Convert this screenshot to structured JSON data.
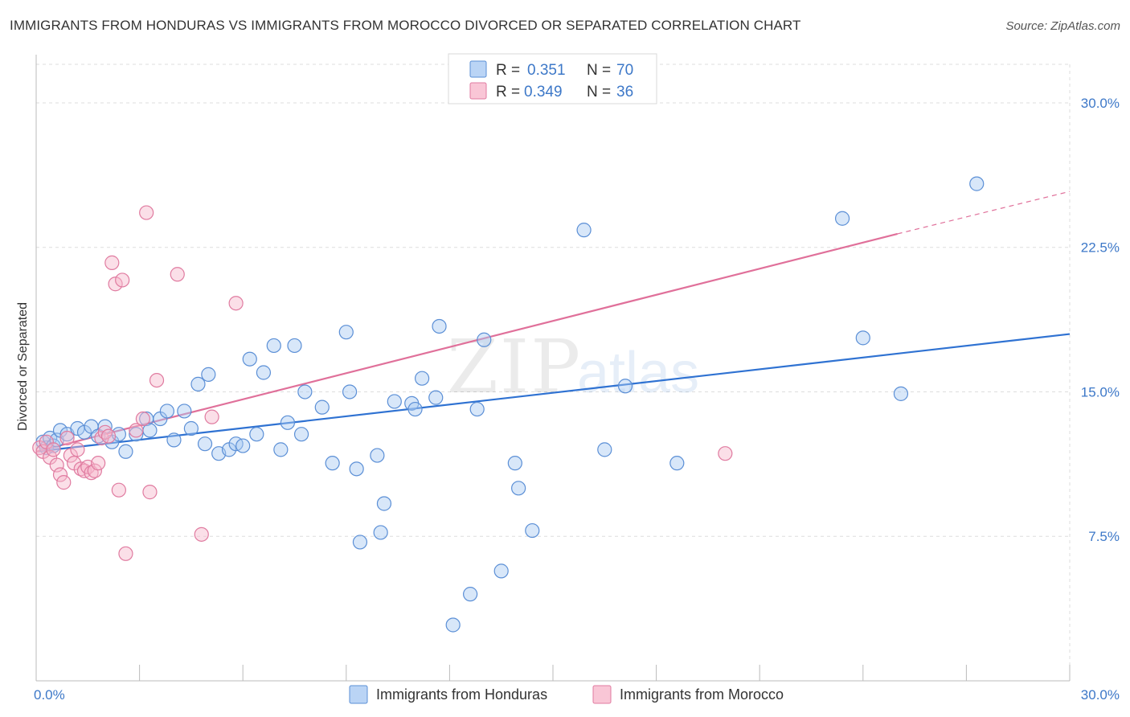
{
  "title": "IMMIGRANTS FROM HONDURAS VS IMMIGRANTS FROM MOROCCO DIVORCED OR SEPARATED CORRELATION CHART",
  "source": "Source: ZipAtlas.com",
  "watermark": {
    "zip": "ZIP",
    "atlas": "atlas"
  },
  "legend": {
    "r_label": "R =",
    "n_label": "N =",
    "series": [
      {
        "r": "0.351",
        "n": "70"
      },
      {
        "r": "0.349",
        "n": "36"
      }
    ]
  },
  "colors": {
    "honduras_fill": "#a9c9f2",
    "honduras_stroke": "#5b8fd6",
    "honduras_line": "#2f72d2",
    "morocco_fill": "#f7b8cc",
    "morocco_stroke": "#e07ba0",
    "morocco_line": "#e0709a",
    "tick_label": "#3d78c8",
    "grid": "#dddddd"
  },
  "chart_data": {
    "type": "scatter",
    "title": "IMMIGRANTS FROM HONDURAS VS IMMIGRANTS FROM MOROCCO DIVORCED OR SEPARATED CORRELATION CHART",
    "xlabel": "",
    "ylabel": "Divorced or Separated",
    "xlim": [
      0,
      30
    ],
    "ylim": [
      0,
      32
    ],
    "x_tick_labels": [
      "0.0%",
      "30.0%"
    ],
    "y_ticks": [
      7.5,
      15.0,
      22.5,
      30.0
    ],
    "y_tick_labels": [
      "7.5%",
      "15.0%",
      "22.5%",
      "30.0%"
    ],
    "legend_position": "top-center",
    "series": [
      {
        "name": "Immigrants from Honduras",
        "r": 0.351,
        "n": 70,
        "trend": {
          "x0": 0,
          "y0": 11.9,
          "x1": 30,
          "y1": 18.0
        },
        "points": [
          [
            0.2,
            12.4
          ],
          [
            0.3,
            12.1
          ],
          [
            0.4,
            12.6
          ],
          [
            0.5,
            12.2
          ],
          [
            0.6,
            12.5
          ],
          [
            0.7,
            13.0
          ],
          [
            0.9,
            12.8
          ],
          [
            1.2,
            13.1
          ],
          [
            1.4,
            12.9
          ],
          [
            1.6,
            13.2
          ],
          [
            1.8,
            12.7
          ],
          [
            2.0,
            13.2
          ],
          [
            2.2,
            12.4
          ],
          [
            2.4,
            12.8
          ],
          [
            2.6,
            11.9
          ],
          [
            2.9,
            12.8
          ],
          [
            3.2,
            13.6
          ],
          [
            3.3,
            13.0
          ],
          [
            3.6,
            13.6
          ],
          [
            3.8,
            14.0
          ],
          [
            4.0,
            12.5
          ],
          [
            4.3,
            14.0
          ],
          [
            4.5,
            13.1
          ],
          [
            4.7,
            15.4
          ],
          [
            4.9,
            12.3
          ],
          [
            5.0,
            15.9
          ],
          [
            5.3,
            11.8
          ],
          [
            5.6,
            12.0
          ],
          [
            5.8,
            12.3
          ],
          [
            6.0,
            12.2
          ],
          [
            6.2,
            16.7
          ],
          [
            6.4,
            12.8
          ],
          [
            6.6,
            16.0
          ],
          [
            6.9,
            17.4
          ],
          [
            7.1,
            12.0
          ],
          [
            7.3,
            13.4
          ],
          [
            7.5,
            17.4
          ],
          [
            7.7,
            12.8
          ],
          [
            7.8,
            15.0
          ],
          [
            8.3,
            14.2
          ],
          [
            8.6,
            11.3
          ],
          [
            9.0,
            18.1
          ],
          [
            9.1,
            15.0
          ],
          [
            9.3,
            11.0
          ],
          [
            9.4,
            7.2
          ],
          [
            9.9,
            11.7
          ],
          [
            10.0,
            7.7
          ],
          [
            10.1,
            9.2
          ],
          [
            10.4,
            14.5
          ],
          [
            10.9,
            14.4
          ],
          [
            11.0,
            14.1
          ],
          [
            11.2,
            15.7
          ],
          [
            11.6,
            14.7
          ],
          [
            11.7,
            18.4
          ],
          [
            12.1,
            2.9
          ],
          [
            12.6,
            4.5
          ],
          [
            12.8,
            14.1
          ],
          [
            13.0,
            17.7
          ],
          [
            13.5,
            5.7
          ],
          [
            13.9,
            11.3
          ],
          [
            14.0,
            10.0
          ],
          [
            14.4,
            7.8
          ],
          [
            15.9,
            23.4
          ],
          [
            16.5,
            12.0
          ],
          [
            17.1,
            15.3
          ],
          [
            18.6,
            11.3
          ],
          [
            23.4,
            24.0
          ],
          [
            24.0,
            17.8
          ],
          [
            25.1,
            14.9
          ],
          [
            27.3,
            25.8
          ]
        ]
      },
      {
        "name": "Immigrants from Morocco",
        "r": 0.349,
        "n": 36,
        "trend": {
          "x0": 0,
          "y0": 11.9,
          "x1": 25.0,
          "y1": 23.2
        },
        "trend_extension": {
          "x0": 25.0,
          "y0": 23.2,
          "x1": 30,
          "y1": 25.4
        },
        "points": [
          [
            0.1,
            12.1
          ],
          [
            0.2,
            11.9
          ],
          [
            0.3,
            12.4
          ],
          [
            0.4,
            11.6
          ],
          [
            0.5,
            12.0
          ],
          [
            0.6,
            11.2
          ],
          [
            0.7,
            10.7
          ],
          [
            0.8,
            10.3
          ],
          [
            0.9,
            12.6
          ],
          [
            1.0,
            11.7
          ],
          [
            1.1,
            11.3
          ],
          [
            1.2,
            12.0
          ],
          [
            1.3,
            11.0
          ],
          [
            1.4,
            10.9
          ],
          [
            1.5,
            11.1
          ],
          [
            1.6,
            10.8
          ],
          [
            1.7,
            10.9
          ],
          [
            1.8,
            11.3
          ],
          [
            1.9,
            12.6
          ],
          [
            2.0,
            12.9
          ],
          [
            2.1,
            12.7
          ],
          [
            2.2,
            21.7
          ],
          [
            2.3,
            20.6
          ],
          [
            2.4,
            9.9
          ],
          [
            2.5,
            20.8
          ],
          [
            2.6,
            6.6
          ],
          [
            2.9,
            13.0
          ],
          [
            3.1,
            13.6
          ],
          [
            3.2,
            24.3
          ],
          [
            3.3,
            9.8
          ],
          [
            3.5,
            15.6
          ],
          [
            4.1,
            21.1
          ],
          [
            4.8,
            7.6
          ],
          [
            5.1,
            13.7
          ],
          [
            5.8,
            19.6
          ],
          [
            20.0,
            11.8
          ]
        ]
      }
    ]
  },
  "x_axis": {
    "left_label": "0.0%",
    "right_label": "30.0%"
  }
}
